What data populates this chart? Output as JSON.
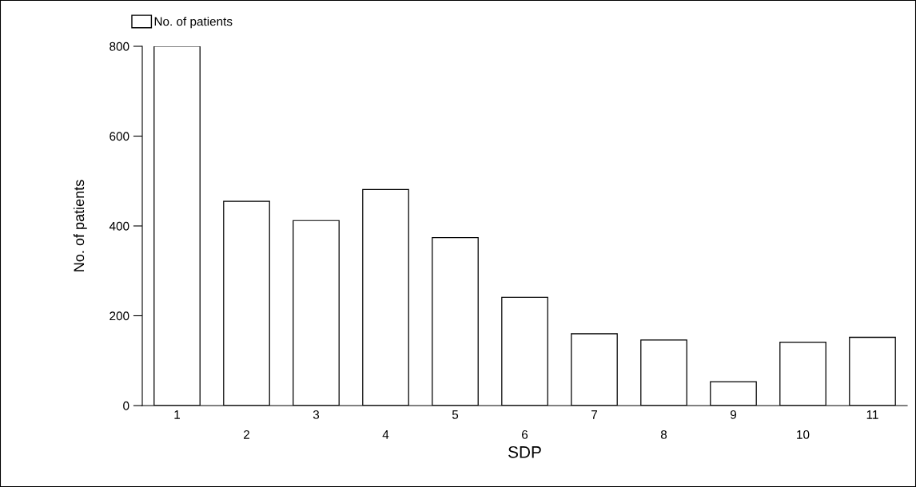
{
  "chart_data": {
    "type": "bar",
    "xlabel": "SDP",
    "ylabel": "No. of patients",
    "categories": [
      "1",
      "2",
      "3",
      "4",
      "5",
      "6",
      "7",
      "8",
      "9",
      "10",
      "11"
    ],
    "series": [
      {
        "name": "No. of patients",
        "color": "#ffffff",
        "values": [
          800,
          455,
          412,
          481,
          374,
          241,
          160,
          146,
          53,
          141,
          152
        ]
      }
    ],
    "ylim": [
      0,
      800
    ],
    "yticks": [
      0,
      200,
      400,
      600,
      800
    ],
    "grid": false,
    "legend": "top left"
  }
}
